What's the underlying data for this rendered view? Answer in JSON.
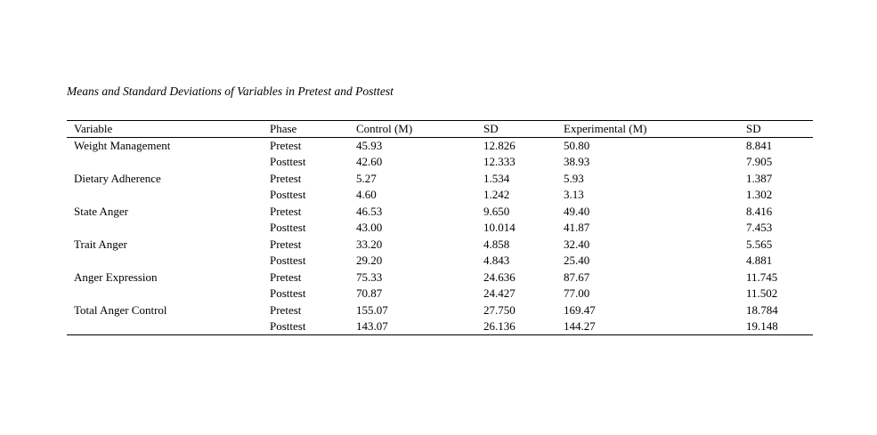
{
  "title": "Means and Standard Deviations of Variables in Pretest and Posttest",
  "table": {
    "headers": [
      "Variable",
      "Phase",
      "Control (M)",
      "SD",
      "Experimental (M)",
      "SD"
    ],
    "rows": [
      {
        "variable": "Weight Management",
        "phase": "Pretest",
        "control_m": "45.93",
        "control_sd": "12.826",
        "experimental_m": "50.80",
        "experimental_sd": "8.841"
      },
      {
        "variable": "",
        "phase": "Posttest",
        "control_m": "42.60",
        "control_sd": "12.333",
        "experimental_m": "38.93",
        "experimental_sd": "7.905"
      },
      {
        "variable": "Dietary Adherence",
        "phase": "Pretest",
        "control_m": "5.27",
        "control_sd": "1.534",
        "experimental_m": "5.93",
        "experimental_sd": "1.387"
      },
      {
        "variable": "",
        "phase": "Posttest",
        "control_m": "4.60",
        "control_sd": "1.242",
        "experimental_m": "3.13",
        "experimental_sd": "1.302"
      },
      {
        "variable": "State Anger",
        "phase": "Pretest",
        "control_m": "46.53",
        "control_sd": "9.650",
        "experimental_m": "49.40",
        "experimental_sd": "8.416"
      },
      {
        "variable": "",
        "phase": "Posttest",
        "control_m": "43.00",
        "control_sd": "10.014",
        "experimental_m": "41.87",
        "experimental_sd": "7.453"
      },
      {
        "variable": "Trait Anger",
        "phase": "Pretest",
        "control_m": "33.20",
        "control_sd": "4.858",
        "experimental_m": "32.40",
        "experimental_sd": "5.565"
      },
      {
        "variable": "",
        "phase": "Posttest",
        "control_m": "29.20",
        "control_sd": "4.843",
        "experimental_m": "25.40",
        "experimental_sd": "4.881"
      },
      {
        "variable": "Anger Expression",
        "phase": "Pretest",
        "control_m": "75.33",
        "control_sd": "24.636",
        "experimental_m": "87.67",
        "experimental_sd": "11.745"
      },
      {
        "variable": "",
        "phase": "Posttest",
        "control_m": "70.87",
        "control_sd": "24.427",
        "experimental_m": "77.00",
        "experimental_sd": "11.502"
      },
      {
        "variable": "Total Anger Control",
        "phase": "Pretest",
        "control_m": "155.07",
        "control_sd": "27.750",
        "experimental_m": "169.47",
        "experimental_sd": "18.784"
      },
      {
        "variable": "",
        "phase": "Posttest",
        "control_m": "143.07",
        "control_sd": "26.136",
        "experimental_m": "144.27",
        "experimental_sd": "19.148"
      }
    ],
    "cell_keys": [
      "variable",
      "phase",
      "control_m",
      "control_sd",
      "experimental_m",
      "experimental_sd"
    ],
    "cell_names": [
      "cell-variable",
      "cell-phase",
      "cell-control-mean",
      "cell-control-sd",
      "cell-experimental-mean",
      "cell-experimental-sd"
    ]
  },
  "colors": {
    "background": "#ffffff",
    "text": "#000000",
    "rule": "#000000"
  }
}
